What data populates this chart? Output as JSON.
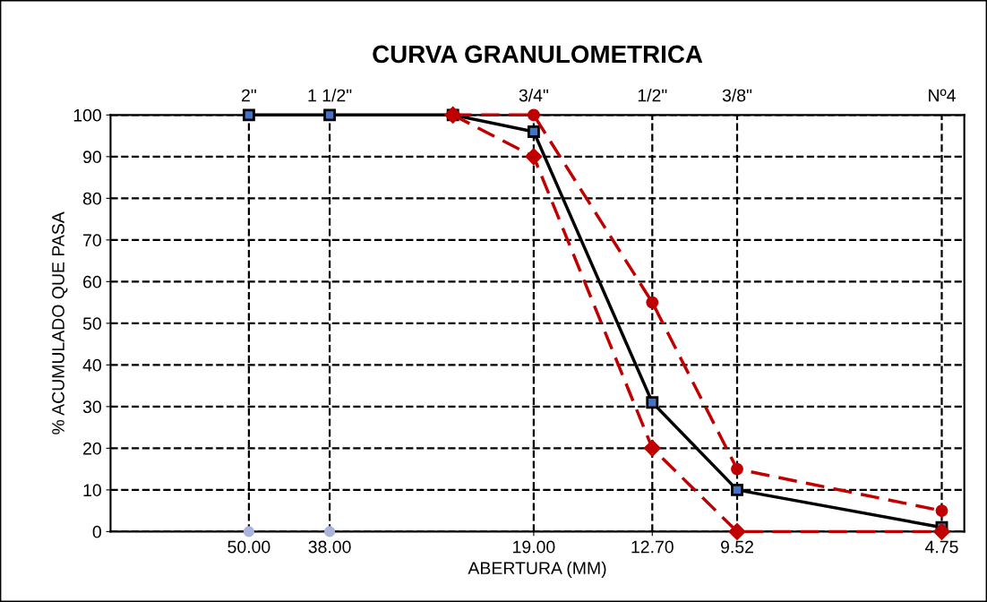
{
  "chart_data": {
    "type": "line",
    "title": "CURVA GRANULOMETRICA",
    "xlabel": "ABERTURA (MM)",
    "ylabel": "% ACUMULADO QUE PASA",
    "log": "x",
    "xlim": [
      80,
      4.4
    ],
    "ylim": [
      0,
      100
    ],
    "xticks": [
      {
        "value": 50,
        "label": "50.00"
      },
      {
        "value": 38,
        "label": "38.00"
      },
      {
        "value": 19,
        "label": "19.00"
      },
      {
        "value": 12.7,
        "label": "12.70"
      },
      {
        "value": 9.52,
        "label": "9.52"
      },
      {
        "value": 4.75,
        "label": "4.75"
      }
    ],
    "annotations": [
      "2\"",
      "1 1/2\"",
      "3/4\"",
      "1/2\"",
      "3/8\"",
      "Nº4"
    ],
    "yticks": [
      0,
      10,
      20,
      30,
      40,
      50,
      60,
      70,
      80,
      90,
      100
    ],
    "grid": true,
    "line_style": "dashed",
    "series": [
      {
        "color": "#c00000",
        "x": [
          25,
          19,
          12.7,
          9.52,
          4.75
        ],
        "values": [
          100,
          100,
          55,
          15,
          5
        ],
        "marker": "circle",
        "line_style": "dashed"
      },
      {
        "color": "#c00000",
        "x": [
          25,
          19,
          12.7,
          9.52,
          4.75
        ],
        "values": [
          100,
          90,
          20,
          0,
          0
        ],
        "marker": "diamond",
        "line_style": "dashed"
      },
      {
        "color": "#000000",
        "x": [
          50,
          38,
          25,
          19,
          12.7,
          9.52,
          4.75
        ],
        "values": [
          100,
          100,
          100,
          96,
          31,
          10,
          1
        ],
        "marker": "square",
        "line_style": "solid"
      },
      {
        "type": "scatter",
        "color": "#aab4dc",
        "x": [
          50,
          38
        ],
        "values": [
          0,
          0
        ],
        "marker": "circle"
      }
    ]
  }
}
